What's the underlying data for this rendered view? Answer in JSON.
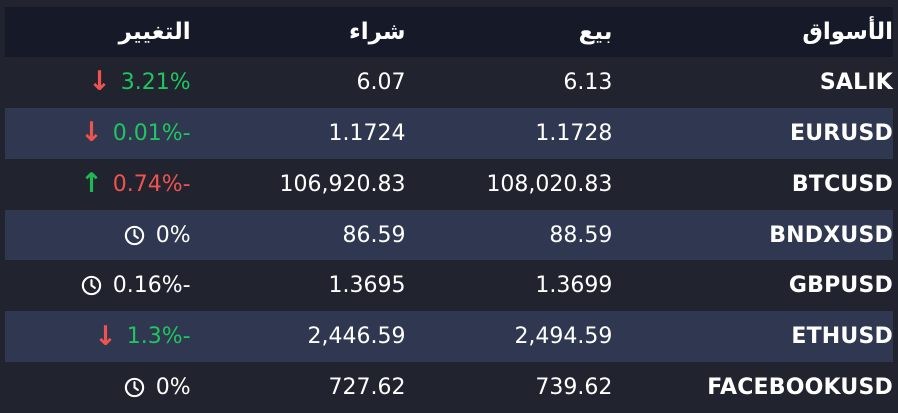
{
  "colors": {
    "background": "#21242e",
    "header_bg": "#161928",
    "row_alt_bg": "#2f3850",
    "green": "#1fc55e",
    "red": "#ef5350",
    "text": "#ffffff"
  },
  "header": {
    "markets": "الأسواق",
    "sell": "بيع",
    "buy": "شراء",
    "change": "التغيير"
  },
  "rows": [
    {
      "market": "SALIK",
      "sell": "6.13",
      "buy": "6.07",
      "change": "3.21%",
      "change_color": "green",
      "icon": "arrow-down",
      "alt": false
    },
    {
      "market": "EURUSD",
      "sell": "1.1728",
      "buy": "1.1724",
      "change": "0.01%-",
      "change_color": "green",
      "icon": "arrow-down",
      "alt": true
    },
    {
      "market": "BTCUSD",
      "sell": "108,020.83",
      "buy": "106,920.83",
      "change": "0.74%-",
      "change_color": "red",
      "icon": "arrow-up",
      "alt": false
    },
    {
      "market": "BNDXUSD",
      "sell": "88.59",
      "buy": "86.59",
      "change": "0%",
      "change_color": "white",
      "icon": "clock",
      "alt": true
    },
    {
      "market": "GBPUSD",
      "sell": "1.3699",
      "buy": "1.3695",
      "change": "0.16%-",
      "change_color": "white",
      "icon": "clock",
      "alt": false
    },
    {
      "market": "ETHUSD",
      "sell": "2,494.59",
      "buy": "2,446.59",
      "change": "1.3%-",
      "change_color": "green",
      "icon": "arrow-down",
      "alt": true
    },
    {
      "market": "FACEBOOKUSD",
      "sell": "739.62",
      "buy": "727.62",
      "change": "0%",
      "change_color": "white",
      "icon": "clock",
      "alt": false
    }
  ]
}
